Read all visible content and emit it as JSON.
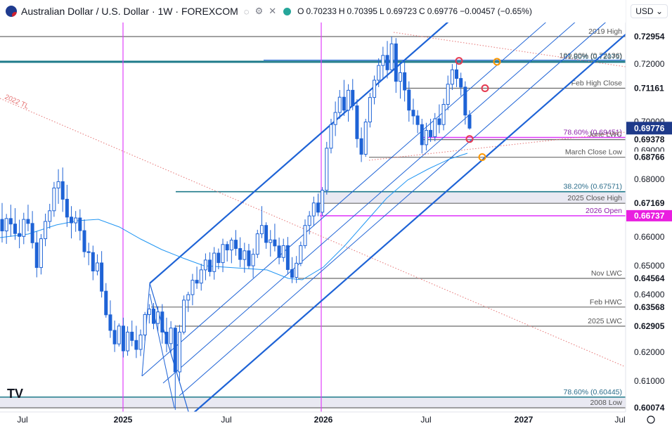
{
  "header": {
    "symbol": "Australian Dollar / U.S. Dollar · 1W · FOREXCOM",
    "o_label": "O",
    "o": "0.70233",
    "h_label": "H",
    "h": "0.70395",
    "l_label": "L",
    "l": "0.69723",
    "c_label": "C",
    "c": "0.69776",
    "change": "−0.00457 (−0.65%)",
    "currency": "USD",
    "icons": [
      "australia-flag-icon",
      "hide-icon",
      "settings-icon",
      "close-icon",
      "chevron-down-icon",
      "goto-icon"
    ]
  },
  "colors": {
    "magenta": "#e040fb",
    "channel": "#1e63d6",
    "teal_level": "#1e7a8a",
    "gray_level": "#555555",
    "candle": "#1e63d6",
    "ma": "#2196f3",
    "orange_marker": "#ff9800",
    "red_marker": "#e53950",
    "last_price": "#1e3a8a",
    "open_2026": "#e91ee0"
  },
  "chart_data": {
    "type": "candlestick",
    "title": "Australian Dollar / U.S. Dollar · 1W · FOREXCOM",
    "x_ticks": [
      "Jul",
      "2025",
      "Jul",
      "2026",
      "Jul",
      "2027",
      "Jul"
    ],
    "y_ticks": [
      0.72,
      0.7,
      0.69,
      0.68,
      0.66,
      0.65,
      0.64,
      0.62,
      0.61
    ],
    "y_tick_labels": [
      "0.72000",
      "0.70000",
      "0.69000",
      "0.68000",
      "0.66000",
      "0.65000",
      "0.64000",
      "0.62000",
      "0.61000"
    ],
    "ylim": [
      0.5993,
      0.7349
    ],
    "grid": false,
    "levels": [
      {
        "label": "2019 High",
        "price": 0.72954,
        "axis": "0.72954",
        "color": "gray"
      },
      {
        "label": "61.80% (0.72079)",
        "price": 0.72079,
        "axis": "",
        "color": "teal"
      },
      {
        "label": "100.00% (0.72136)",
        "price": 0.72136,
        "axis": "",
        "color": "blue"
      },
      {
        "label": "Feb High Close",
        "price": 0.71161,
        "axis": "0.71161",
        "color": "gray"
      },
      {
        "label": "78.60% (0.69451)",
        "price": 0.69451,
        "axis": "",
        "color": "magenta"
      },
      {
        "label": "June LWC",
        "price": 0.69378,
        "axis": "0.69378",
        "color": "gray"
      },
      {
        "label": "March Close Low",
        "price": 0.68766,
        "axis": "0.68766",
        "color": "gray"
      },
      {
        "label": "38.20% (0.67571)",
        "price": 0.67571,
        "axis": "",
        "color": "teal"
      },
      {
        "label": "2025 Close High",
        "price": 0.67169,
        "axis": "0.67169",
        "color": "gray"
      },
      {
        "label": "2026 Open",
        "price": 0.66737,
        "axis": "0.66737",
        "color": "magenta"
      },
      {
        "label": "Nov LWC",
        "price": 0.64564,
        "axis": "0.64564",
        "color": "gray"
      },
      {
        "label": "Feb HWC",
        "price": 0.63568,
        "axis": "0.63568",
        "color": "gray"
      },
      {
        "label": "2025 LWC",
        "price": 0.62905,
        "axis": "0.62905",
        "color": "gray"
      },
      {
        "label": "78.60% (0.60445)",
        "price": 0.60445,
        "axis": "",
        "color": "teal"
      },
      {
        "label": "2008 Low",
        "price": 0.60074,
        "axis": "0.60074",
        "color": "gray"
      }
    ],
    "last_price": {
      "label": "0.69776",
      "price": 0.69776
    },
    "trendline_label": "2022 TL",
    "series": [
      {
        "name": "",
        "values": [
          [
            0.6661,
            0.6718,
            0.6581,
            0.6621
          ],
          [
            0.6621,
            0.668,
            0.6576,
            0.6664
          ],
          [
            0.6664,
            0.6712,
            0.6601,
            0.6645
          ],
          [
            0.6645,
            0.67,
            0.659,
            0.6612
          ],
          [
            0.6612,
            0.666,
            0.6561,
            0.6602
          ],
          [
            0.6602,
            0.6684,
            0.6575,
            0.6661
          ],
          [
            0.6661,
            0.6712,
            0.662,
            0.6647
          ],
          [
            0.6647,
            0.669,
            0.656,
            0.658
          ],
          [
            0.658,
            0.662,
            0.646,
            0.6494
          ],
          [
            0.6494,
            0.661,
            0.647,
            0.6594
          ],
          [
            0.6594,
            0.6681,
            0.6568,
            0.6654
          ],
          [
            0.6654,
            0.6715,
            0.6629,
            0.6691
          ],
          [
            0.6691,
            0.6791,
            0.667,
            0.677
          ],
          [
            0.677,
            0.6835,
            0.6715,
            0.6792
          ],
          [
            0.6792,
            0.6841,
            0.6687,
            0.6731
          ],
          [
            0.6731,
            0.6781,
            0.6635,
            0.6669
          ],
          [
            0.6669,
            0.6707,
            0.6595,
            0.6649
          ],
          [
            0.6649,
            0.669,
            0.6618,
            0.6666
          ],
          [
            0.6666,
            0.6696,
            0.6588,
            0.6622
          ],
          [
            0.6622,
            0.6661,
            0.6529,
            0.6549
          ],
          [
            0.6549,
            0.658,
            0.6502,
            0.6546
          ],
          [
            0.6546,
            0.657,
            0.645,
            0.6482
          ],
          [
            0.6482,
            0.654,
            0.6467,
            0.651
          ],
          [
            0.651,
            0.6551,
            0.639,
            0.6412
          ],
          [
            0.6412,
            0.644,
            0.632,
            0.633
          ],
          [
            0.633,
            0.638,
            0.625,
            0.6276
          ],
          [
            0.6276,
            0.631,
            0.6201,
            0.6229
          ],
          [
            0.6229,
            0.63,
            0.622,
            0.6291
          ],
          [
            0.6291,
            0.632,
            0.6182,
            0.6205
          ],
          [
            0.6205,
            0.629,
            0.6188,
            0.627
          ],
          [
            0.627,
            0.631,
            0.6221,
            0.6241
          ],
          [
            0.6241,
            0.6292,
            0.618,
            0.621
          ],
          [
            0.621,
            0.6279,
            0.6187,
            0.626
          ],
          [
            0.626,
            0.634,
            0.6241,
            0.6331
          ],
          [
            0.6331,
            0.6367,
            0.63,
            0.635
          ],
          [
            0.635,
            0.6371,
            0.628,
            0.63
          ],
          [
            0.63,
            0.636,
            0.6273,
            0.634
          ],
          [
            0.634,
            0.6367,
            0.623,
            0.627
          ],
          [
            0.627,
            0.632,
            0.62,
            0.623
          ],
          [
            0.623,
            0.6308,
            0.6198,
            0.6284
          ],
          [
            0.6284,
            0.6294,
            0.6,
            0.6132
          ],
          [
            0.6132,
            0.6295,
            0.6101,
            0.627
          ],
          [
            0.627,
            0.6397,
            0.6262,
            0.6381
          ],
          [
            0.6381,
            0.641,
            0.634,
            0.64
          ],
          [
            0.64,
            0.6472,
            0.6363,
            0.645
          ],
          [
            0.645,
            0.6497,
            0.642,
            0.644
          ],
          [
            0.644,
            0.6507,
            0.6414,
            0.6486
          ],
          [
            0.6486,
            0.6543,
            0.645,
            0.652
          ],
          [
            0.652,
            0.6547,
            0.6463,
            0.648
          ],
          [
            0.648,
            0.6565,
            0.6452,
            0.6544
          ],
          [
            0.6544,
            0.656,
            0.6488,
            0.6511
          ],
          [
            0.6511,
            0.6594,
            0.6478,
            0.6574
          ],
          [
            0.6574,
            0.6585,
            0.6515,
            0.6555
          ],
          [
            0.6555,
            0.6598,
            0.6509,
            0.6589
          ],
          [
            0.6589,
            0.6624,
            0.6535,
            0.656
          ],
          [
            0.656,
            0.6599,
            0.6495,
            0.6522
          ],
          [
            0.6522,
            0.658,
            0.6476,
            0.6552
          ],
          [
            0.6552,
            0.6576,
            0.6489,
            0.65
          ],
          [
            0.65,
            0.656,
            0.6458,
            0.654
          ],
          [
            0.654,
            0.6625,
            0.6527,
            0.6611
          ],
          [
            0.6611,
            0.6707,
            0.6596,
            0.664
          ],
          [
            0.664,
            0.6651,
            0.6559,
            0.6581
          ],
          [
            0.6581,
            0.6624,
            0.6532,
            0.659
          ],
          [
            0.659,
            0.6646,
            0.655,
            0.6569
          ],
          [
            0.6569,
            0.6598,
            0.6505,
            0.6529
          ],
          [
            0.6529,
            0.6594,
            0.6514,
            0.657
          ],
          [
            0.657,
            0.66,
            0.647,
            0.6487
          ],
          [
            0.6487,
            0.653,
            0.644,
            0.646
          ],
          [
            0.646,
            0.6534,
            0.644,
            0.6509
          ],
          [
            0.6509,
            0.6584,
            0.6499,
            0.657
          ],
          [
            0.657,
            0.6661,
            0.656,
            0.664
          ],
          [
            0.664,
            0.669,
            0.6609,
            0.6673
          ],
          [
            0.6673,
            0.674,
            0.6638,
            0.6718
          ],
          [
            0.6718,
            0.675,
            0.6672,
            0.6686
          ],
          [
            0.6686,
            0.6773,
            0.6674,
            0.6762
          ],
          [
            0.6762,
            0.693,
            0.6747,
            0.6908
          ],
          [
            0.6908,
            0.701,
            0.689,
            0.699
          ],
          [
            0.699,
            0.707,
            0.695,
            0.7032
          ],
          [
            0.7032,
            0.711,
            0.701,
            0.7085
          ],
          [
            0.7085,
            0.7145,
            0.702,
            0.704
          ],
          [
            0.704,
            0.713,
            0.7,
            0.7109
          ],
          [
            0.7109,
            0.7148,
            0.704,
            0.7055
          ],
          [
            0.7055,
            0.7078,
            0.691,
            0.6941
          ],
          [
            0.6941,
            0.698,
            0.686,
            0.6887
          ],
          [
            0.6887,
            0.701,
            0.6878,
            0.6999
          ],
          [
            0.6999,
            0.71,
            0.698,
            0.7084
          ],
          [
            0.7084,
            0.716,
            0.706,
            0.7144
          ],
          [
            0.7144,
            0.722,
            0.712,
            0.7195
          ],
          [
            0.7195,
            0.726,
            0.715,
            0.723
          ],
          [
            0.723,
            0.728,
            0.715,
            0.718
          ],
          [
            0.718,
            0.7295,
            0.717,
            0.727
          ],
          [
            0.727,
            0.729,
            0.71,
            0.714
          ],
          [
            0.714,
            0.72,
            0.708,
            0.717
          ],
          [
            0.717,
            0.721,
            0.707,
            0.711
          ],
          [
            0.711,
            0.714,
            0.7,
            0.704
          ],
          [
            0.704,
            0.708,
            0.699,
            0.702
          ],
          [
            0.702,
            0.704,
            0.696,
            0.699
          ],
          [
            0.699,
            0.701,
            0.689,
            0.692
          ],
          [
            0.692,
            0.6996,
            0.69,
            0.697
          ],
          [
            0.697,
            0.701,
            0.693,
            0.6948
          ],
          [
            0.6948,
            0.703,
            0.6932,
            0.701
          ],
          [
            0.701,
            0.706,
            0.696,
            0.699
          ],
          [
            0.699,
            0.708,
            0.697,
            0.706
          ],
          [
            0.706,
            0.716,
            0.704,
            0.713
          ],
          [
            0.713,
            0.72,
            0.711,
            0.718
          ],
          [
            0.718,
            0.721,
            0.712,
            0.715
          ],
          [
            0.715,
            0.717,
            0.709,
            0.712
          ],
          [
            0.712,
            0.714,
            0.699,
            0.7023
          ],
          [
            0.70233,
            0.70395,
            0.69723,
            0.69776
          ]
        ]
      }
    ]
  }
}
